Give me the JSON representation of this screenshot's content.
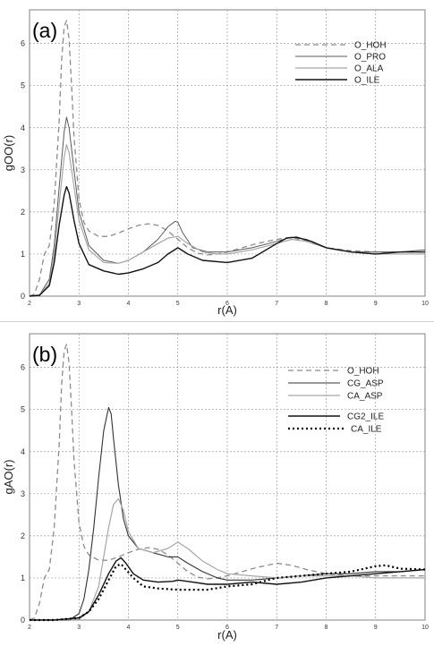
{
  "chart_data": [
    {
      "type": "line",
      "panel_label": "(a)",
      "xlabel": "r(A)",
      "ylabel": "gOO(r)",
      "xlim": [
        2,
        10
      ],
      "ylim": [
        0,
        6.8
      ],
      "xticks": [
        2,
        3,
        4,
        5,
        6,
        7,
        8,
        9,
        10
      ],
      "yticks": [
        0,
        1,
        2,
        3,
        4,
        5,
        6
      ],
      "grid": true,
      "legend_position": "top-right",
      "series": [
        {
          "name": "O_HOH",
          "color": "#8c8c8c",
          "dash": "dashed",
          "width": 1.3,
          "x": [
            2.0,
            2.1,
            2.2,
            2.3,
            2.4,
            2.5,
            2.6,
            2.65,
            2.7,
            2.75,
            2.8,
            2.85,
            2.9,
            3.0,
            3.1,
            3.2,
            3.4,
            3.6,
            3.8,
            4.0,
            4.2,
            4.4,
            4.6,
            4.8,
            5.0,
            5.2,
            5.4,
            5.6,
            5.8,
            6.0,
            6.3,
            6.6,
            7.0,
            7.3,
            7.6,
            8.0,
            8.5,
            9.0,
            9.5,
            10.0
          ],
          "y": [
            0.0,
            0.05,
            0.4,
            1.0,
            1.2,
            2.2,
            4.2,
            5.6,
            6.4,
            6.55,
            6.1,
            5.0,
            3.8,
            2.3,
            1.75,
            1.55,
            1.42,
            1.42,
            1.5,
            1.6,
            1.68,
            1.72,
            1.68,
            1.55,
            1.35,
            1.15,
            1.02,
            0.98,
            1.0,
            1.05,
            1.15,
            1.25,
            1.35,
            1.4,
            1.3,
            1.15,
            1.08,
            1.05,
            1.05,
            1.05
          ]
        },
        {
          "name": "O_PRO",
          "color": "#5a5a5a",
          "dash": "solid",
          "width": 1.0,
          "x": [
            2.0,
            2.2,
            2.4,
            2.5,
            2.6,
            2.7,
            2.75,
            2.8,
            2.9,
            3.0,
            3.2,
            3.5,
            3.8,
            4.0,
            4.3,
            4.6,
            4.8,
            4.95,
            5.0,
            5.1,
            5.3,
            5.6,
            6.0,
            6.5,
            7.0,
            7.3,
            7.6,
            8.0,
            8.5,
            9.0,
            9.5,
            10.0
          ],
          "y": [
            0.0,
            0.03,
            0.4,
            1.2,
            2.6,
            3.9,
            4.25,
            4.0,
            3.0,
            2.0,
            1.2,
            0.85,
            0.78,
            0.85,
            1.05,
            1.35,
            1.65,
            1.78,
            1.75,
            1.5,
            1.15,
            1.05,
            1.05,
            1.15,
            1.3,
            1.4,
            1.35,
            1.15,
            1.05,
            1.05,
            1.05,
            1.1
          ]
        },
        {
          "name": "O_ALA",
          "color": "#a6a6a6",
          "dash": "solid",
          "width": 1.2,
          "x": [
            2.0,
            2.2,
            2.4,
            2.5,
            2.6,
            2.7,
            2.75,
            2.8,
            2.9,
            3.0,
            3.2,
            3.5,
            3.8,
            4.0,
            4.3,
            4.6,
            4.8,
            5.0,
            5.2,
            5.5,
            5.8,
            6.0,
            6.5,
            7.0,
            7.3,
            7.6,
            8.0,
            8.5,
            9.0,
            9.5,
            10.0
          ],
          "y": [
            0.0,
            0.03,
            0.3,
            1.0,
            2.2,
            3.3,
            3.6,
            3.4,
            2.6,
            1.8,
            1.1,
            0.8,
            0.78,
            0.85,
            1.05,
            1.25,
            1.38,
            1.42,
            1.25,
            1.05,
            1.0,
            1.0,
            1.1,
            1.25,
            1.35,
            1.3,
            1.15,
            1.05,
            1.0,
            1.0,
            1.0
          ]
        },
        {
          "name": "O_ILE",
          "color": "#111111",
          "dash": "solid",
          "width": 1.4,
          "x": [
            2.0,
            2.2,
            2.4,
            2.5,
            2.6,
            2.7,
            2.75,
            2.8,
            2.9,
            3.0,
            3.2,
            3.5,
            3.8,
            4.0,
            4.3,
            4.6,
            4.8,
            5.0,
            5.2,
            5.5,
            6.0,
            6.5,
            7.0,
            7.2,
            7.4,
            7.7,
            8.0,
            8.5,
            9.0,
            9.5,
            10.0
          ],
          "y": [
            0.0,
            0.02,
            0.25,
            0.8,
            1.7,
            2.4,
            2.6,
            2.45,
            1.8,
            1.25,
            0.75,
            0.6,
            0.52,
            0.55,
            0.65,
            0.8,
            1.0,
            1.15,
            1.0,
            0.85,
            0.8,
            0.9,
            1.25,
            1.38,
            1.4,
            1.3,
            1.15,
            1.05,
            1.0,
            1.05,
            1.05
          ]
        }
      ]
    },
    {
      "type": "line",
      "panel_label": "(b)",
      "xlabel": "r(A)",
      "ylabel": "gAO(r)",
      "xlim": [
        2,
        10
      ],
      "ylim": [
        0,
        6.8
      ],
      "xticks": [
        2,
        3,
        4,
        5,
        6,
        7,
        8,
        9,
        10
      ],
      "yticks": [
        0,
        1,
        2,
        3,
        4,
        5,
        6
      ],
      "grid": true,
      "legend_position": "top-right",
      "series": [
        {
          "name": "O_HOH",
          "color": "#8c8c8c",
          "dash": "dashed",
          "width": 1.3,
          "x": [
            2.0,
            2.1,
            2.2,
            2.3,
            2.4,
            2.5,
            2.6,
            2.65,
            2.7,
            2.75,
            2.8,
            2.85,
            2.9,
            3.0,
            3.1,
            3.2,
            3.4,
            3.6,
            3.8,
            4.0,
            4.2,
            4.4,
            4.6,
            4.8,
            5.0,
            5.2,
            5.4,
            5.6,
            5.8,
            6.0,
            6.3,
            6.6,
            7.0,
            7.3,
            7.6,
            8.0,
            8.5,
            9.0,
            9.5,
            10.0
          ],
          "y": [
            0.0,
            0.05,
            0.4,
            1.0,
            1.2,
            2.2,
            4.2,
            5.6,
            6.4,
            6.55,
            6.1,
            5.0,
            3.8,
            2.3,
            1.75,
            1.55,
            1.42,
            1.42,
            1.5,
            1.6,
            1.68,
            1.72,
            1.68,
            1.55,
            1.35,
            1.15,
            1.02,
            0.98,
            1.0,
            1.05,
            1.15,
            1.25,
            1.35,
            1.3,
            1.2,
            1.1,
            1.05,
            1.05,
            1.05,
            1.05
          ]
        },
        {
          "name": "CG_ASP",
          "color": "#333333",
          "dash": "solid",
          "width": 1.1,
          "x": [
            2.0,
            2.8,
            3.0,
            3.1,
            3.2,
            3.3,
            3.4,
            3.5,
            3.6,
            3.65,
            3.7,
            3.8,
            3.9,
            4.0,
            4.2,
            4.5,
            4.8,
            5.0,
            5.2,
            5.5,
            5.8,
            6.0,
            6.5,
            7.0,
            7.5,
            8.0,
            8.5,
            9.0,
            9.5,
            10.0
          ],
          "y": [
            0.0,
            0.0,
            0.15,
            0.5,
            1.2,
            2.2,
            3.4,
            4.5,
            5.05,
            4.9,
            4.3,
            3.2,
            2.4,
            2.0,
            1.7,
            1.6,
            1.5,
            1.5,
            1.35,
            1.15,
            1.0,
            0.95,
            0.95,
            1.0,
            1.05,
            1.1,
            1.1,
            1.15,
            1.15,
            1.2
          ]
        },
        {
          "name": "CA_ASP",
          "color": "#a6a6a6",
          "dash": "solid",
          "width": 1.2,
          "x": [
            2.0,
            3.0,
            3.2,
            3.4,
            3.5,
            3.6,
            3.7,
            3.8,
            3.9,
            4.0,
            4.2,
            4.5,
            4.8,
            5.0,
            5.2,
            5.5,
            5.8,
            6.0,
            6.5,
            7.0,
            7.5,
            8.0,
            8.5,
            9.0,
            9.5,
            10.0
          ],
          "y": [
            0.0,
            0.02,
            0.2,
            0.8,
            1.5,
            2.2,
            2.75,
            2.88,
            2.6,
            2.1,
            1.7,
            1.6,
            1.7,
            1.85,
            1.7,
            1.4,
            1.2,
            1.1,
            1.05,
            1.0,
            1.05,
            1.05,
            1.05,
            1.0,
            1.0,
            1.0
          ]
        },
        {
          "name": "CG2_ILE",
          "color": "#111111",
          "dash": "solid",
          "width": 1.4,
          "x": [
            2.0,
            2.5,
            3.0,
            3.2,
            3.4,
            3.6,
            3.75,
            3.85,
            3.95,
            4.1,
            4.3,
            4.6,
            4.9,
            5.0,
            5.3,
            5.6,
            6.0,
            6.5,
            7.0,
            7.5,
            8.0,
            8.5,
            9.0,
            9.5,
            10.0
          ],
          "y": [
            0.0,
            0.0,
            0.05,
            0.2,
            0.6,
            1.1,
            1.4,
            1.48,
            1.35,
            1.1,
            0.95,
            0.9,
            0.92,
            0.95,
            0.9,
            0.85,
            0.85,
            0.9,
            0.85,
            0.9,
            1.0,
            1.05,
            1.1,
            1.15,
            1.2
          ]
        },
        {
          "name": "CA_ILE",
          "color": "#000000",
          "dash": "dotted",
          "width": 2.2,
          "x": [
            2.0,
            2.5,
            3.0,
            3.2,
            3.4,
            3.6,
            3.75,
            3.85,
            3.95,
            4.1,
            4.3,
            4.6,
            5.0,
            5.3,
            5.6,
            6.0,
            6.5,
            7.0,
            7.5,
            8.0,
            8.5,
            9.0,
            9.2,
            9.5,
            10.0
          ],
          "y": [
            0.0,
            0.0,
            0.05,
            0.2,
            0.5,
            0.95,
            1.28,
            1.33,
            1.2,
            1.0,
            0.8,
            0.75,
            0.72,
            0.72,
            0.72,
            0.8,
            0.85,
            1.0,
            1.05,
            1.1,
            1.15,
            1.28,
            1.3,
            1.22,
            1.2
          ]
        }
      ]
    }
  ]
}
